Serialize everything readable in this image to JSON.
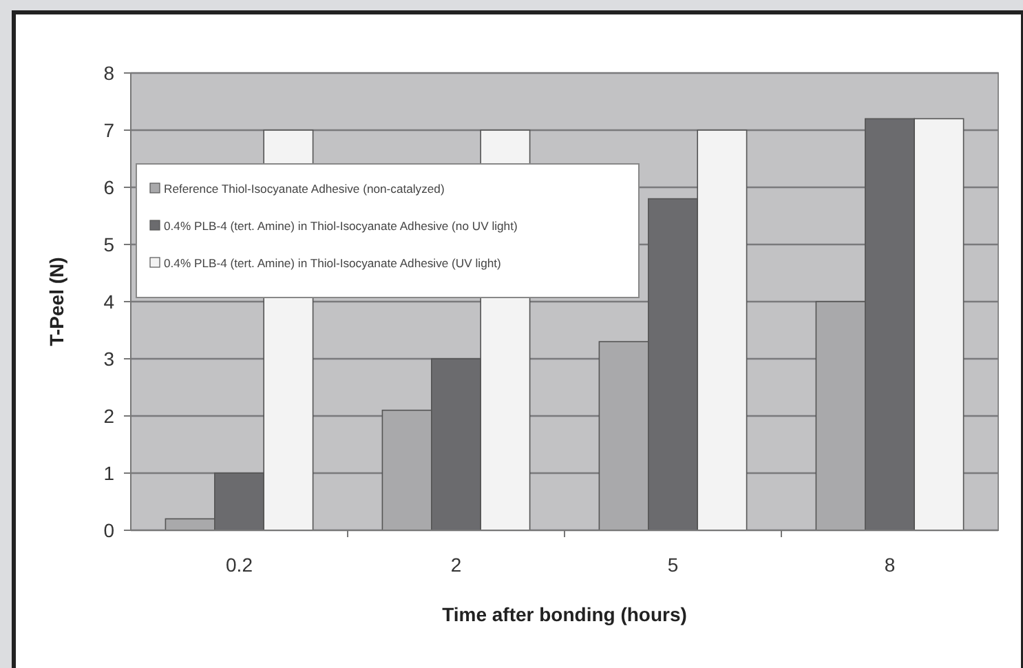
{
  "chart_data": {
    "type": "bar",
    "xlabel": "Time after bonding (hours)",
    "ylabel": "T-Peel (N)",
    "categories": [
      "0.2",
      "2",
      "5",
      "8"
    ],
    "series": [
      {
        "name": "Reference Thiol-Isocyanate Adhesive (non-catalyzed)",
        "color": "#a9a9ab",
        "values": [
          0.2,
          2.1,
          3.3,
          4.0
        ]
      },
      {
        "name": "0.4% PLB-4 (tert. Amine) in Thiol-Isocyanate Adhesive (no UV light)",
        "color": "#6b6b6e",
        "values": [
          1.0,
          3.0,
          5.8,
          7.2
        ]
      },
      {
        "name": "0.4% PLB-4 (tert. Amine) in Thiol-Isocyanate Adhesive (UV light)",
        "color": "#f3f3f3",
        "values": [
          7.0,
          7.0,
          7.0,
          7.2
        ]
      }
    ],
    "ylim": [
      0,
      8
    ],
    "yticks": [
      0,
      1,
      2,
      3,
      4,
      5,
      6,
      7,
      8
    ],
    "grid": "y",
    "legend": "top left"
  }
}
